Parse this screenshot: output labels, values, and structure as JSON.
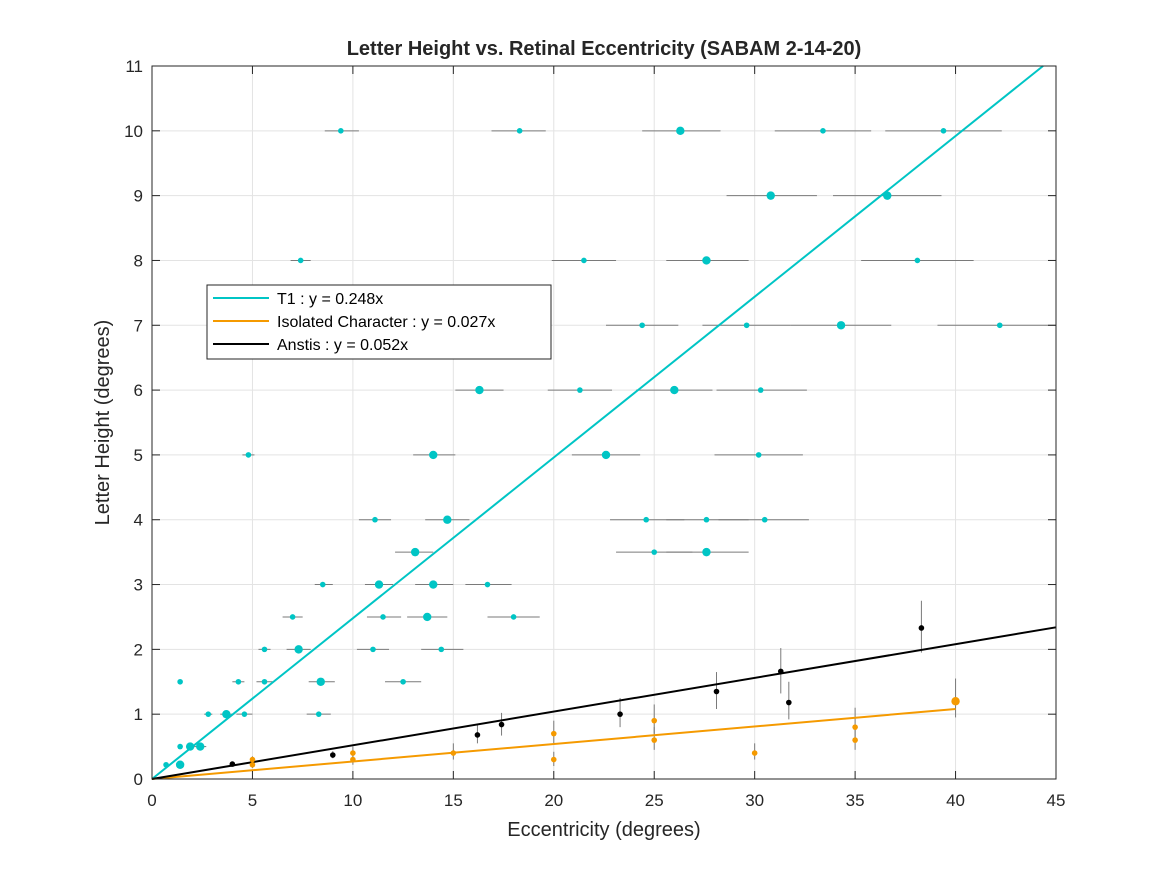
{
  "chart_data": {
    "type": "scatter",
    "title": "Letter Height vs. Retinal Eccentricity (SABAM 2-14-20)",
    "xlabel": "Eccentricity (degrees)",
    "ylabel": "Letter Height (degrees)",
    "xlim": [
      0,
      45
    ],
    "ylim": [
      0,
      11
    ],
    "xticks": [
      "0",
      "5",
      "10",
      "15",
      "20",
      "25",
      "30",
      "35",
      "40",
      "45"
    ],
    "yticks": [
      "0",
      "1",
      "2",
      "3",
      "4",
      "5",
      "6",
      "7",
      "8",
      "9",
      "10",
      "11"
    ],
    "grid": true,
    "legend_placement": "upper-left",
    "colors": {
      "t1": "#00c5c5",
      "isolated": "#f59a00",
      "anstis": "#000000",
      "errorbar": "#7a7a7a"
    },
    "series": [
      {
        "name": "T1 : y = 0.248x",
        "fit_slope": 0.248,
        "fit_x_range": [
          0,
          45
        ],
        "points": [
          {
            "x": 0.7,
            "y": 0.22,
            "lo": 0.7,
            "hi": 0.7,
            "big": false
          },
          {
            "x": 1.4,
            "y": 0.22,
            "lo": 1.4,
            "hi": 1.4,
            "big": true
          },
          {
            "x": 1.4,
            "y": 0.5,
            "lo": 1.4,
            "hi": 1.4,
            "big": false
          },
          {
            "x": 1.9,
            "y": 0.5,
            "lo": 1.9,
            "hi": 1.9,
            "big": true
          },
          {
            "x": 2.4,
            "y": 0.5,
            "lo": 2.1,
            "hi": 2.7,
            "big": true
          },
          {
            "x": 1.4,
            "y": 1.5,
            "lo": 1.4,
            "hi": 1.4,
            "big": false
          },
          {
            "x": 2.8,
            "y": 1.0,
            "lo": 2.6,
            "hi": 3.0,
            "big": false
          },
          {
            "x": 3.7,
            "y": 1.0,
            "lo": 3.4,
            "hi": 4.0,
            "big": true
          },
          {
            "x": 4.6,
            "y": 1.0,
            "lo": 4.2,
            "hi": 5.0,
            "big": false
          },
          {
            "x": 4.3,
            "y": 1.5,
            "lo": 4.0,
            "hi": 4.6,
            "big": false
          },
          {
            "x": 5.6,
            "y": 1.5,
            "lo": 5.2,
            "hi": 6.0,
            "big": false
          },
          {
            "x": 5.6,
            "y": 2.0,
            "lo": 5.3,
            "hi": 5.9,
            "big": false
          },
          {
            "x": 4.8,
            "y": 5.0,
            "lo": 4.5,
            "hi": 5.1,
            "big": false
          },
          {
            "x": 7.0,
            "y": 2.5,
            "lo": 6.5,
            "hi": 7.5,
            "big": false
          },
          {
            "x": 7.3,
            "y": 2.0,
            "lo": 6.7,
            "hi": 7.9,
            "big": true
          },
          {
            "x": 7.4,
            "y": 8.0,
            "lo": 6.9,
            "hi": 7.9,
            "big": false
          },
          {
            "x": 8.3,
            "y": 1.0,
            "lo": 7.7,
            "hi": 8.9,
            "big": false
          },
          {
            "x": 8.4,
            "y": 1.5,
            "lo": 7.8,
            "hi": 9.1,
            "big": true
          },
          {
            "x": 8.5,
            "y": 3.0,
            "lo": 8.1,
            "hi": 9.0,
            "big": false
          },
          {
            "x": 9.4,
            "y": 10.0,
            "lo": 8.6,
            "hi": 10.3,
            "big": false
          },
          {
            "x": 11.0,
            "y": 2.0,
            "lo": 10.2,
            "hi": 11.8,
            "big": false
          },
          {
            "x": 11.1,
            "y": 4.0,
            "lo": 10.3,
            "hi": 11.9,
            "big": false
          },
          {
            "x": 11.3,
            "y": 3.0,
            "lo": 10.6,
            "hi": 12.0,
            "big": true
          },
          {
            "x": 11.5,
            "y": 2.5,
            "lo": 10.7,
            "hi": 12.4,
            "big": false
          },
          {
            "x": 12.5,
            "y": 1.5,
            "lo": 11.6,
            "hi": 13.4,
            "big": false
          },
          {
            "x": 13.1,
            "y": 3.5,
            "lo": 12.1,
            "hi": 14.0,
            "big": true
          },
          {
            "x": 13.7,
            "y": 2.5,
            "lo": 12.7,
            "hi": 14.7,
            "big": true
          },
          {
            "x": 14.0,
            "y": 3.0,
            "lo": 13.1,
            "hi": 15.0,
            "big": true
          },
          {
            "x": 14.0,
            "y": 5.0,
            "lo": 13.0,
            "hi": 15.1,
            "big": true
          },
          {
            "x": 14.4,
            "y": 2.0,
            "lo": 13.4,
            "hi": 15.5,
            "big": false
          },
          {
            "x": 14.7,
            "y": 4.0,
            "lo": 13.6,
            "hi": 15.8,
            "big": true
          },
          {
            "x": 16.3,
            "y": 6.0,
            "lo": 15.1,
            "hi": 17.5,
            "big": true
          },
          {
            "x": 16.7,
            "y": 3.0,
            "lo": 15.6,
            "hi": 17.9,
            "big": false
          },
          {
            "x": 18.0,
            "y": 2.5,
            "lo": 16.7,
            "hi": 19.3,
            "big": false
          },
          {
            "x": 18.3,
            "y": 10.0,
            "lo": 16.9,
            "hi": 19.6,
            "big": false
          },
          {
            "x": 21.3,
            "y": 6.0,
            "lo": 19.7,
            "hi": 22.9,
            "big": false
          },
          {
            "x": 21.5,
            "y": 8.0,
            "lo": 19.9,
            "hi": 23.1,
            "big": false
          },
          {
            "x": 22.6,
            "y": 5.0,
            "lo": 20.9,
            "hi": 24.3,
            "big": true
          },
          {
            "x": 24.4,
            "y": 7.0,
            "lo": 22.6,
            "hi": 26.2,
            "big": false
          },
          {
            "x": 24.6,
            "y": 4.0,
            "lo": 22.8,
            "hi": 26.5,
            "big": false
          },
          {
            "x": 25.0,
            "y": 3.5,
            "lo": 23.1,
            "hi": 26.9,
            "big": false
          },
          {
            "x": 26.0,
            "y": 6.0,
            "lo": 24.1,
            "hi": 27.9,
            "big": true
          },
          {
            "x": 26.3,
            "y": 10.0,
            "lo": 24.4,
            "hi": 28.3,
            "big": true
          },
          {
            "x": 27.6,
            "y": 3.5,
            "lo": 25.6,
            "hi": 29.7,
            "big": true
          },
          {
            "x": 27.6,
            "y": 4.0,
            "lo": 25.6,
            "hi": 29.7,
            "big": false
          },
          {
            "x": 27.6,
            "y": 8.0,
            "lo": 25.6,
            "hi": 29.7,
            "big": true
          },
          {
            "x": 29.6,
            "y": 7.0,
            "lo": 27.4,
            "hi": 31.8,
            "big": false
          },
          {
            "x": 30.2,
            "y": 5.0,
            "lo": 28.0,
            "hi": 32.4,
            "big": false
          },
          {
            "x": 30.3,
            "y": 6.0,
            "lo": 28.1,
            "hi": 32.6,
            "big": false
          },
          {
            "x": 30.5,
            "y": 4.0,
            "lo": 28.2,
            "hi": 32.7,
            "big": false
          },
          {
            "x": 30.8,
            "y": 9.0,
            "lo": 28.6,
            "hi": 33.1,
            "big": true
          },
          {
            "x": 33.4,
            "y": 10.0,
            "lo": 31.0,
            "hi": 35.8,
            "big": false
          },
          {
            "x": 34.3,
            "y": 7.0,
            "lo": 31.8,
            "hi": 36.8,
            "big": true
          },
          {
            "x": 36.6,
            "y": 9.0,
            "lo": 33.9,
            "hi": 39.3,
            "big": true
          },
          {
            "x": 38.1,
            "y": 8.0,
            "lo": 35.3,
            "hi": 40.9,
            "big": false
          },
          {
            "x": 39.4,
            "y": 10.0,
            "lo": 36.5,
            "hi": 42.3,
            "big": false
          },
          {
            "x": 42.2,
            "y": 7.0,
            "lo": 39.1,
            "hi": 45.0,
            "big": false
          }
        ]
      },
      {
        "name": "Isolated Character : y = 0.027x",
        "fit_slope": 0.027,
        "fit_x_range": [
          0,
          40
        ],
        "points": [
          {
            "x": 5,
            "y": 0.22,
            "lo": 0.17,
            "hi": 0.3,
            "big": false
          },
          {
            "x": 5,
            "y": 0.3,
            "lo": 0.2,
            "hi": 0.35,
            "big": false
          },
          {
            "x": 10,
            "y": 0.3,
            "lo": 0.22,
            "hi": 0.4,
            "big": false
          },
          {
            "x": 10,
            "y": 0.4,
            "lo": 0.3,
            "hi": 0.5,
            "big": false
          },
          {
            "x": 15,
            "y": 0.4,
            "lo": 0.3,
            "hi": 0.55,
            "big": false
          },
          {
            "x": 20,
            "y": 0.3,
            "lo": 0.2,
            "hi": 0.42,
            "big": false
          },
          {
            "x": 20,
            "y": 0.7,
            "lo": 0.55,
            "hi": 0.9,
            "big": false
          },
          {
            "x": 25,
            "y": 0.6,
            "lo": 0.45,
            "hi": 0.8,
            "big": false
          },
          {
            "x": 25,
            "y": 0.9,
            "lo": 0.7,
            "hi": 1.15,
            "big": false
          },
          {
            "x": 30,
            "y": 0.4,
            "lo": 0.3,
            "hi": 0.55,
            "big": false
          },
          {
            "x": 35,
            "y": 0.6,
            "lo": 0.45,
            "hi": 0.8,
            "big": false
          },
          {
            "x": 35,
            "y": 0.8,
            "lo": 0.6,
            "hi": 1.1,
            "big": false
          },
          {
            "x": 40,
            "y": 1.2,
            "lo": 0.95,
            "hi": 1.55,
            "big": true
          }
        ]
      },
      {
        "name": "Anstis : y = 0.052x",
        "fit_slope": 0.052,
        "fit_x_range": [
          0,
          45
        ],
        "points": [
          {
            "x": 4.0,
            "y": 0.23,
            "lo": 0.2,
            "hi": 0.26,
            "big": false
          },
          {
            "x": 9.0,
            "y": 0.37,
            "lo": 0.32,
            "hi": 0.43,
            "big": false
          },
          {
            "x": 16.2,
            "y": 0.68,
            "lo": 0.55,
            "hi": 0.83,
            "big": false
          },
          {
            "x": 17.4,
            "y": 0.84,
            "lo": 0.67,
            "hi": 1.02,
            "big": false
          },
          {
            "x": 23.3,
            "y": 1.0,
            "lo": 0.8,
            "hi": 1.25,
            "big": false
          },
          {
            "x": 28.1,
            "y": 1.35,
            "lo": 1.08,
            "hi": 1.65,
            "big": false
          },
          {
            "x": 31.3,
            "y": 1.66,
            "lo": 1.32,
            "hi": 2.02,
            "big": false
          },
          {
            "x": 31.7,
            "y": 1.18,
            "lo": 0.92,
            "hi": 1.5,
            "big": false
          },
          {
            "x": 38.3,
            "y": 2.33,
            "lo": 1.95,
            "hi": 2.75,
            "big": false
          }
        ]
      }
    ]
  }
}
